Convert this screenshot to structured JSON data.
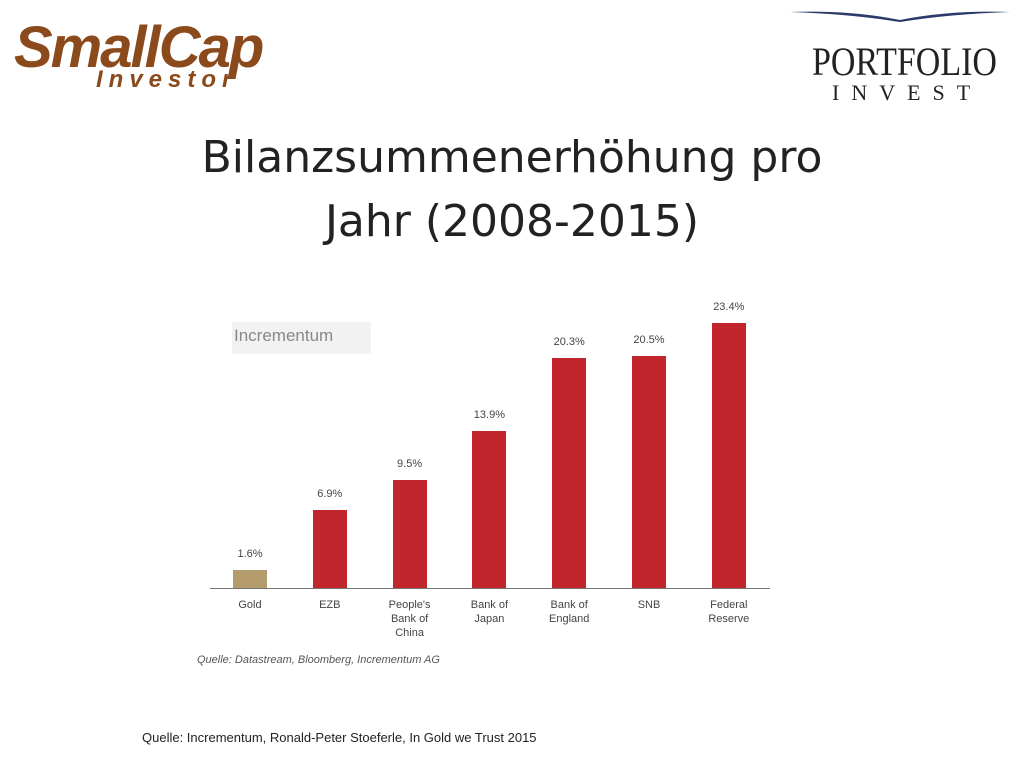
{
  "header": {
    "logo_left": {
      "top": "SmallCap",
      "bottom": "Investor"
    },
    "logo_right": {
      "top": "PORTFOLIO",
      "bottom": "INVEST"
    }
  },
  "chart_data": {
    "type": "bar",
    "title": "Bilanzsummenerhöhung pro Jahr (2008-2015)",
    "logo": "Incrementum",
    "categories": [
      "Gold",
      "EZB",
      "People's Bank of China",
      "Bank of Japan",
      "Bank of England",
      "SNB",
      "Federal Reserve"
    ],
    "values": [
      1.6,
      6.9,
      9.5,
      13.9,
      20.3,
      20.5,
      23.4
    ],
    "value_labels": [
      "1.6%",
      "6.9%",
      "9.5%",
      "13.9%",
      "20.3%",
      "20.5%",
      "23.4%"
    ],
    "colors": [
      "#b39b6c",
      "#c0262c",
      "#c0262c",
      "#c0262c",
      "#c0262c",
      "#c0262c",
      "#c0262c"
    ],
    "source": "Quelle: Datastream, Bloomberg, Incrementum AG"
  },
  "footer": "Quelle: Incrementum, Ronald-Peter  Stoeferle, In Gold we Trust 2015"
}
